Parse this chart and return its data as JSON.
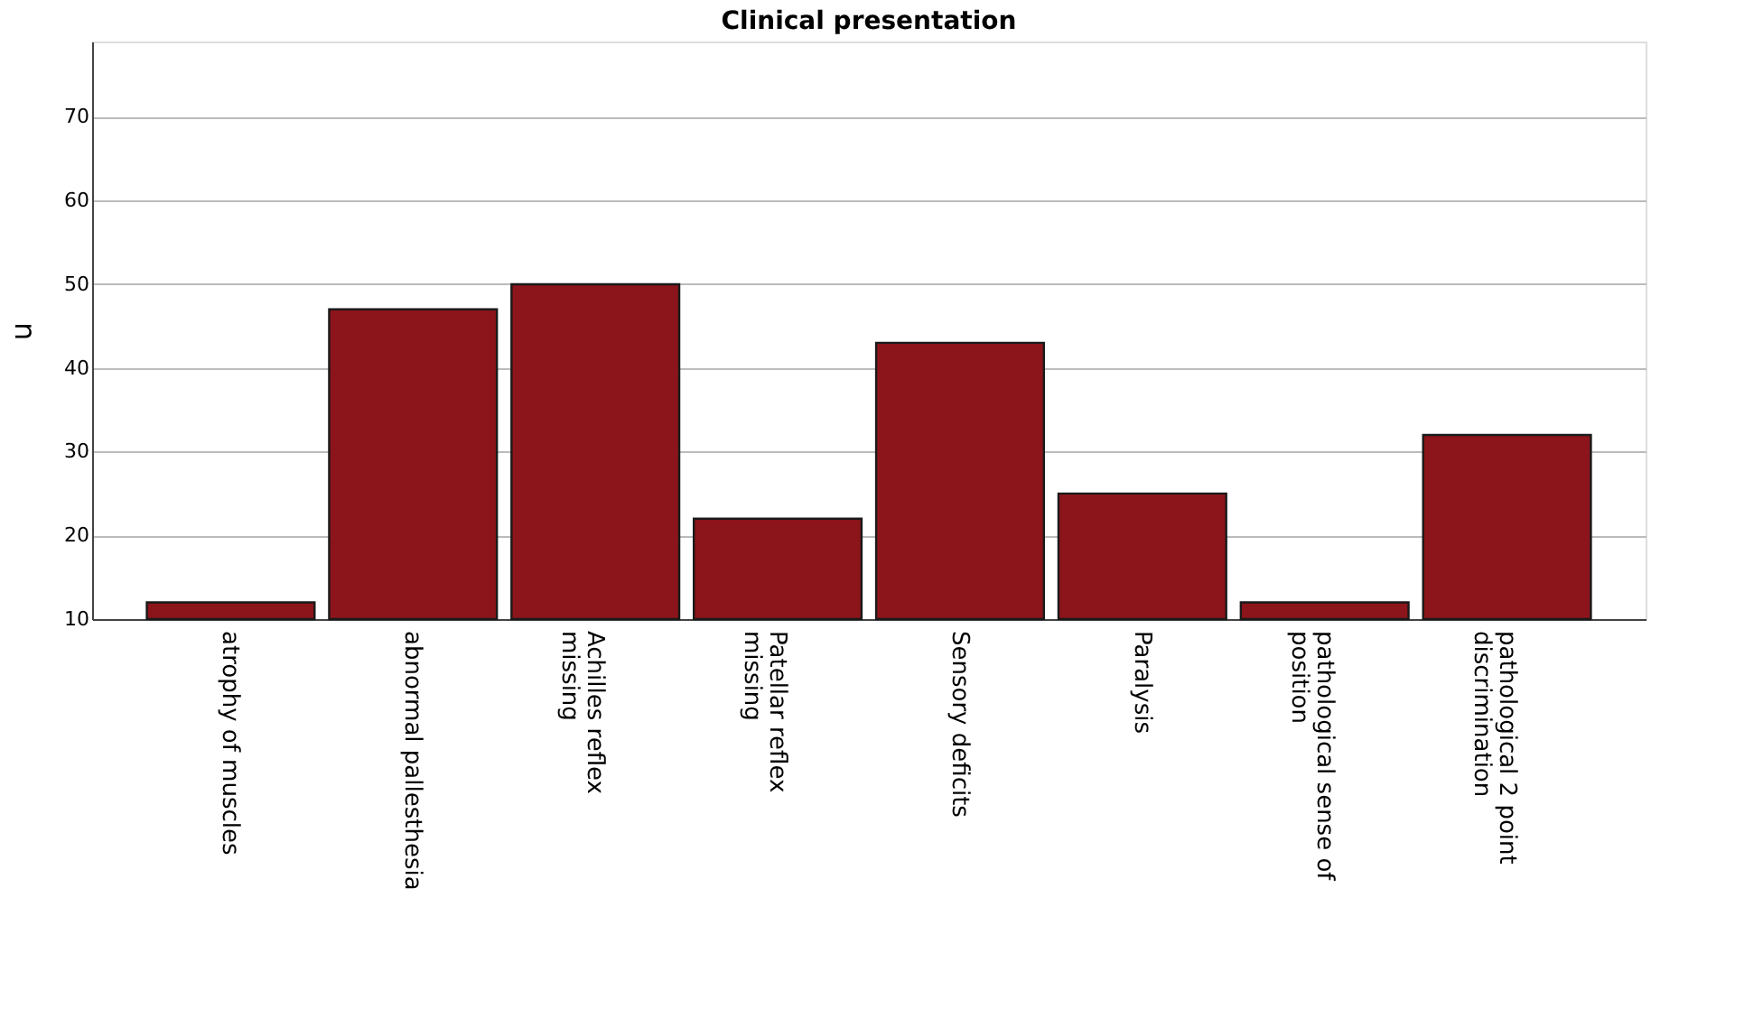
{
  "chart_data": {
    "type": "bar",
    "title": "Clinical presentation",
    "ylabel": "n",
    "categories": [
      "atrophy of muscles",
      "abnormal pallesthesia",
      "Achilles reflex missing",
      "Patellar reflex missing",
      "Sensory deficits",
      "Paralysis",
      "pathological sense of position",
      "pathological 2 point discrimination"
    ],
    "values": [
      12,
      47,
      50,
      22,
      43,
      25,
      12,
      32
    ],
    "color": "#8b151b",
    "ylim": [
      10,
      79
    ],
    "yticks": [
      10,
      20,
      30,
      40,
      50,
      60,
      70
    ],
    "grid": "y"
  }
}
